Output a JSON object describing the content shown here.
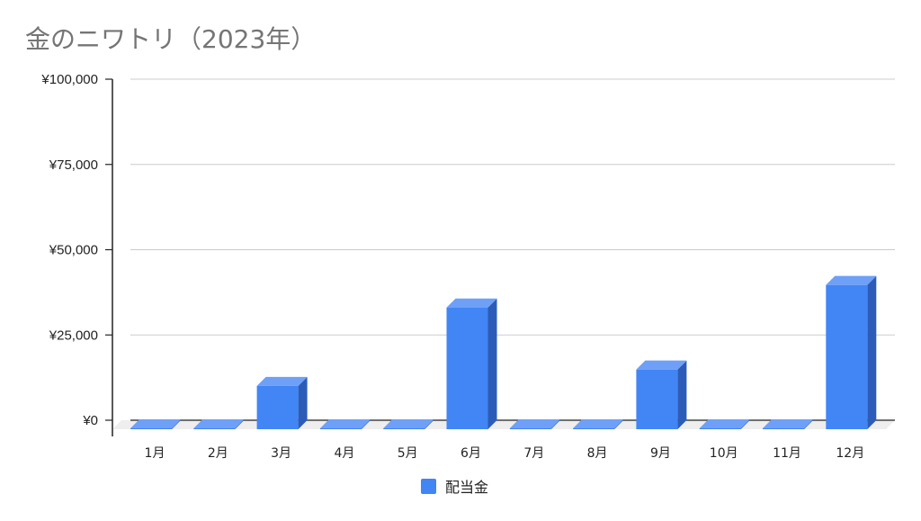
{
  "chart_data": {
    "type": "bar",
    "title": "金のニワトリ（2023年）",
    "categories": [
      "1月",
      "2月",
      "3月",
      "4月",
      "5月",
      "6月",
      "7月",
      "8月",
      "9月",
      "10月",
      "11月",
      "12月"
    ],
    "series": [
      {
        "name": "配当金",
        "values": [
          -2500,
          -2700,
          12700,
          -300,
          -2000,
          35700,
          -2400,
          -2400,
          17500,
          -500,
          -2200,
          42300
        ]
      }
    ],
    "yticks": [
      "¥100,000",
      "¥75,000",
      "¥50,000",
      "¥25,000",
      "¥0"
    ],
    "ytick_values": [
      100000,
      75000,
      50000,
      25000,
      0
    ],
    "ylim": [
      -5000,
      100000
    ],
    "grid": true,
    "style": "3d",
    "legend_position": "bottom",
    "colors": {
      "bar_front": "#4285f4",
      "bar_top": "#6fa0f7",
      "bar_side": "#2d5cb8",
      "grid": "#cccccc",
      "axis": "#222222",
      "floor": "#eeeeee"
    }
  }
}
